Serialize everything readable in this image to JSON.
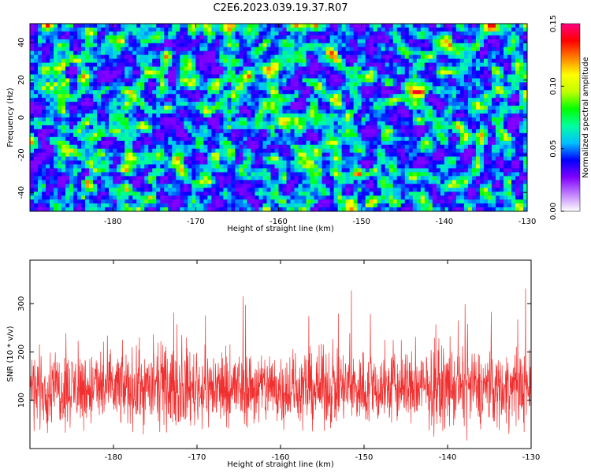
{
  "title": "C2E6.2023.039.19.37.R07",
  "colors": {
    "snr_line": "#f03030",
    "frame": "#000000"
  },
  "chart_data": [
    {
      "type": "heatmap",
      "xlabel": "Height of straight line (km)",
      "ylabel": "Frequency (Hz)",
      "xlim": [
        -190,
        -130
      ],
      "ylim": [
        -50,
        50
      ],
      "xticks": [
        -180,
        -170,
        -160,
        -150,
        -140,
        -130
      ],
      "yticks": [
        -40,
        -20,
        0,
        20,
        40
      ],
      "colorbar": {
        "label": "Normalized spectral amplitude",
        "range": [
          0.0,
          0.15
        ],
        "ticks": [
          "0.00",
          "0.05",
          "0.10",
          "0.15"
        ],
        "colormap": [
          "#ffffff",
          "#c080ff",
          "#8000ff",
          "#0000ff",
          "#00c0ff",
          "#00ffa0",
          "#00ff00",
          "#c0ff00",
          "#ffff00",
          "#ff8000",
          "#ff0000",
          "#ff0080"
        ]
      }
    },
    {
      "type": "line",
      "xlabel": "Height of straight line (km)",
      "ylabel": "SNR (10 * v/v)",
      "xlim": [
        -190,
        -130
      ],
      "ylim": [
        0,
        390
      ],
      "xticks": [
        -180,
        -170,
        -160,
        -150,
        -140,
        -130
      ],
      "yticks": [
        100,
        200,
        300
      ],
      "series_mean": 125,
      "series_spread": 70
    }
  ]
}
